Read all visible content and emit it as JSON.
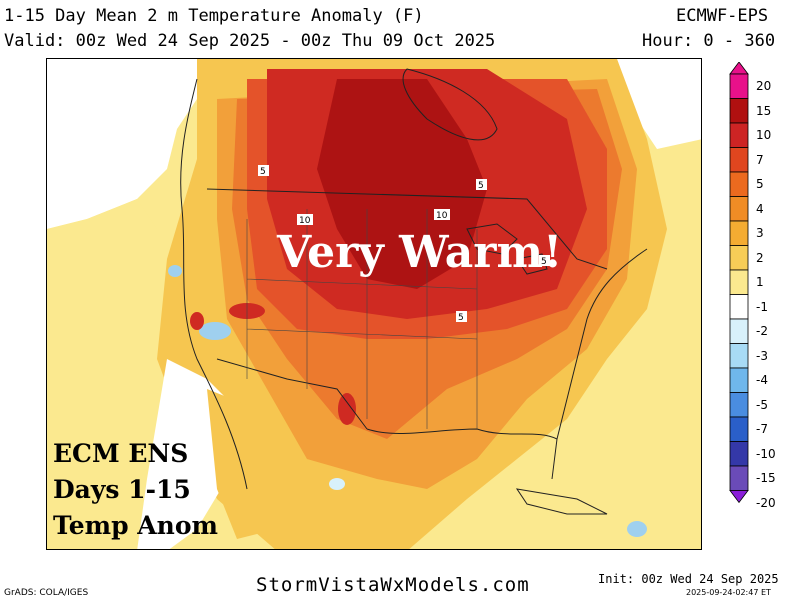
{
  "header": {
    "title": "1-15 Day Mean 2 m Temperature Anomaly (F)",
    "model": "ECMWF-EPS",
    "valid": "Valid: 00z Wed 24 Sep 2025 - 00z Thu 09 Oct 2025",
    "hours": "Hour: 0 - 360"
  },
  "map": {
    "annotation_main": "Very Warm!",
    "annotation_lines": [
      "ECM ENS",
      "Days 1-15",
      "Temp Anom"
    ],
    "contour_labels": [
      "5",
      "10",
      "10",
      "5",
      "5",
      "5"
    ],
    "colors": {
      "ocean": "#ffffff",
      "land_light": "#f9df7a",
      "anom_1_2": "#fbe98f",
      "anom_2_3": "#f6c650",
      "anom_3_4": "#f2a03a",
      "anom_4_5": "#ec7a2e",
      "anom_5_7": "#e4532a",
      "anom_7_10": "#cf2a22",
      "anom_10_15": "#ad1313",
      "cool": "#9fd0ef"
    }
  },
  "colorbar": {
    "labels": [
      "20",
      "15",
      "10",
      "7",
      "5",
      "4",
      "3",
      "2",
      "1",
      "-1",
      "-2",
      "-3",
      "-4",
      "-5",
      "-7",
      "-10",
      "-15",
      "-20"
    ],
    "colors": [
      "#e8118a",
      "#b01010",
      "#cd2424",
      "#e0461f",
      "#ec6a1f",
      "#f08c25",
      "#f4ac32",
      "#f7cd57",
      "#fbe98f",
      "#ffffff",
      "#d8f1fb",
      "#a8dbf5",
      "#6fb7ec",
      "#4a8de0",
      "#2a5fc9",
      "#3438a8",
      "#6a4bb8",
      "#8a1ed8"
    ]
  },
  "footer": {
    "site": "StormVistaWxModels.com",
    "grads": "GrADS: COLA/IGES",
    "init": "Init: 00z Wed 24 Sep 2025",
    "timestamp": "2025-09-24-02:47 ET"
  }
}
